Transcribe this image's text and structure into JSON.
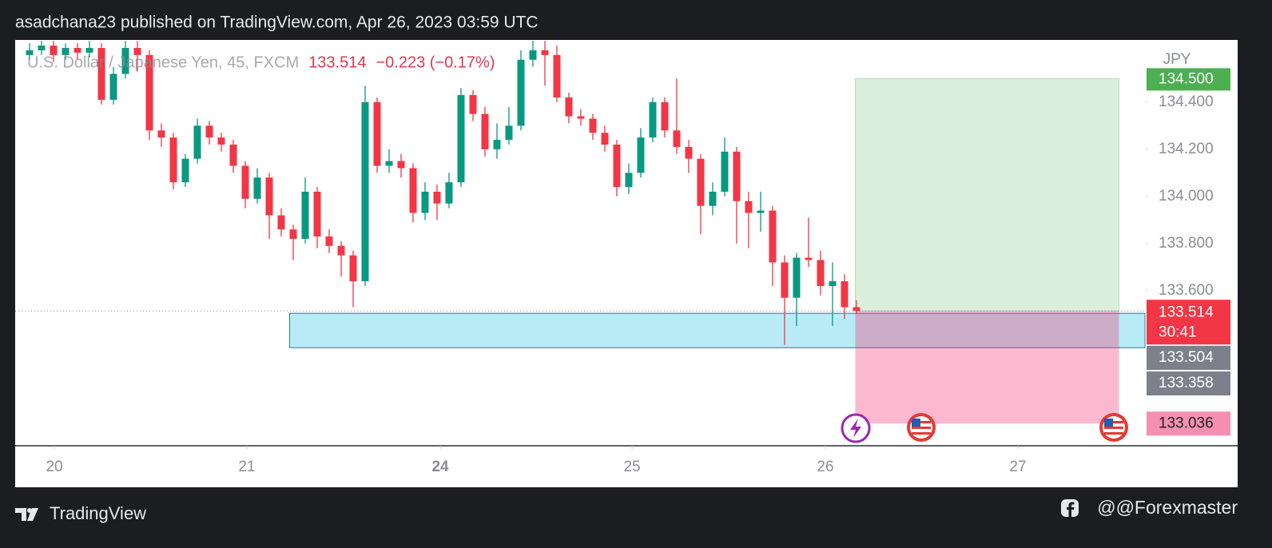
{
  "header": {
    "text": "asadchana23 published on TradingView.com, Apr 26, 2023 03:59 UTC"
  },
  "chart_data": {
    "type": "candlestick",
    "title": "U.S. Dollar / Japanese Yen, 45, FXCM",
    "last_price": 133.514,
    "change": "−0.223 (−0.17%)",
    "countdown": "30:41",
    "y_axis_label": "JPY",
    "up_color": "#089981",
    "down_color": "#f23645",
    "open": [
      134.6,
      134.62,
      134.64,
      134.6,
      134.63,
      134.61,
      134.63,
      134.41,
      134.52,
      134.63,
      134.6,
      134.28,
      134.25,
      134.06,
      134.16,
      134.3,
      134.25,
      134.22,
      134.13,
      133.99,
      134.08,
      133.92,
      133.86,
      133.82,
      134.02,
      133.83,
      133.79,
      133.75,
      133.64,
      134.4,
      134.13,
      134.15,
      134.12,
      133.93,
      134.02,
      133.97,
      134.06,
      134.43,
      134.35,
      134.2,
      134.24,
      134.3,
      134.58,
      134.62,
      134.6,
      134.42,
      134.34,
      134.33,
      134.27,
      134.22,
      134.04,
      134.1,
      134.25,
      134.4,
      134.28,
      134.21,
      134.16,
      133.96,
      134.02,
      134.19,
      133.98,
      133.93,
      133.94,
      133.72,
      133.57,
      133.74,
      133.73,
      133.62,
      133.64,
      133.53
    ],
    "high": [
      134.65,
      134.66,
      134.66,
      134.65,
      134.65,
      134.66,
      134.65,
      134.55,
      134.66,
      134.66,
      134.62,
      134.31,
      134.27,
      134.18,
      134.33,
      134.32,
      134.27,
      134.24,
      134.15,
      134.12,
      134.1,
      133.95,
      133.88,
      134.08,
      134.04,
      133.86,
      133.81,
      133.77,
      134.47,
      134.42,
      134.2,
      134.18,
      134.14,
      134.06,
      134.05,
      134.1,
      134.46,
      134.45,
      134.38,
      134.31,
      134.38,
      134.62,
      134.66,
      134.66,
      134.64,
      134.44,
      134.37,
      134.35,
      134.3,
      134.24,
      134.14,
      134.29,
      134.42,
      134.42,
      134.5,
      134.24,
      134.18,
      134.06,
      134.25,
      134.21,
      134.02,
      134.02,
      133.96,
      133.75,
      133.76,
      133.91,
      133.77,
      133.72,
      133.67,
      133.56
    ],
    "low": [
      134.58,
      134.6,
      134.57,
      134.58,
      134.58,
      134.59,
      134.39,
      134.39,
      134.5,
      134.53,
      134.24,
      134.21,
      134.03,
      134.04,
      134.14,
      134.22,
      134.19,
      134.1,
      133.95,
      133.97,
      133.82,
      133.83,
      133.73,
      133.8,
      133.78,
      133.76,
      133.66,
      133.53,
      133.62,
      134.1,
      134.1,
      134.08,
      133.89,
      133.9,
      133.9,
      133.95,
      134.04,
      134.32,
      134.17,
      134.16,
      134.22,
      134.28,
      134.55,
      134.47,
      134.4,
      134.31,
      134.3,
      134.24,
      134.19,
      134.0,
      134.01,
      134.08,
      134.23,
      134.25,
      134.18,
      134.1,
      133.84,
      133.92,
      134.0,
      133.8,
      133.78,
      133.85,
      133.62,
      133.37,
      133.45,
      133.7,
      133.58,
      133.45,
      133.48,
      133.5
    ],
    "close": [
      134.62,
      134.64,
      134.6,
      134.63,
      134.61,
      134.63,
      134.41,
      134.52,
      134.63,
      134.6,
      134.28,
      134.25,
      134.06,
      134.16,
      134.3,
      134.25,
      134.22,
      134.13,
      133.99,
      134.08,
      133.92,
      133.86,
      133.82,
      134.02,
      133.83,
      133.79,
      133.75,
      133.64,
      134.4,
      134.13,
      134.15,
      134.12,
      133.93,
      134.02,
      133.97,
      134.06,
      134.43,
      134.35,
      134.2,
      134.24,
      134.3,
      134.58,
      134.62,
      134.6,
      134.42,
      134.34,
      134.33,
      134.27,
      134.22,
      134.04,
      134.1,
      134.25,
      134.4,
      134.28,
      134.21,
      134.16,
      133.96,
      134.02,
      134.19,
      133.98,
      133.93,
      133.94,
      133.72,
      133.57,
      133.74,
      133.73,
      133.62,
      133.64,
      133.53,
      133.514
    ],
    "xlim": [
      -1.2,
      93.07
    ],
    "ylim": [
      132.942,
      134.664
    ],
    "xticks": [
      {
        "value": 2.07,
        "label": "20"
      },
      {
        "value": 18.13,
        "label": "21"
      },
      {
        "value": 34.27,
        "label": "24"
      },
      {
        "value": 50.27,
        "label": "25"
      },
      {
        "value": 66.4,
        "label": "26"
      },
      {
        "value": 82.47,
        "label": "27"
      }
    ],
    "yticks": [
      {
        "value": 134.4,
        "label": "134.400"
      },
      {
        "value": 134.2,
        "label": "134.200"
      },
      {
        "value": 134.0,
        "label": "134.000"
      },
      {
        "value": 133.8,
        "label": "133.800"
      },
      {
        "value": 133.6,
        "label": "133.600"
      }
    ],
    "zone": {
      "start": 21.7,
      "top": 133.504,
      "bottom": 133.358
    },
    "position": {
      "start": 68.9,
      "end": 90.9,
      "target": {
        "value": 134.5,
        "label": "134.500"
      },
      "entry": 133.514,
      "stop": 133.036
    }
  },
  "footer": {
    "brand": "TradingView",
    "author": "@@Forexmaster"
  }
}
